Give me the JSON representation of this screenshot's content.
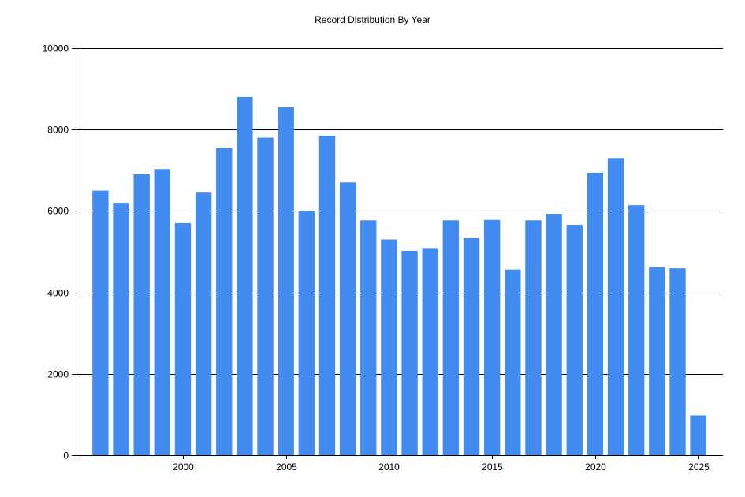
{
  "chart_data": {
    "type": "bar",
    "title": "Record Distribution By Year",
    "xlabel": "",
    "ylabel": "",
    "x": [
      1996,
      1997,
      1998,
      1999,
      2000,
      2001,
      2002,
      2003,
      2004,
      2005,
      2006,
      2007,
      2008,
      2009,
      2010,
      2011,
      2012,
      2013,
      2014,
      2015,
      2016,
      2017,
      2018,
      2019,
      2020,
      2021,
      2022,
      2023,
      2024,
      2025
    ],
    "values": [
      6500,
      6200,
      6900,
      7030,
      5700,
      6450,
      7550,
      8800,
      7800,
      8550,
      6000,
      7850,
      6700,
      5770,
      5300,
      5020,
      5090,
      5770,
      5330,
      5780,
      4560,
      5770,
      5930,
      5660,
      6940,
      7300,
      6140,
      4620,
      4590,
      980
    ],
    "xlim": [
      1994.8,
      2026.2
    ],
    "ylim": [
      0,
      10000
    ],
    "x_ticks": [
      2000,
      2005,
      2010,
      2015,
      2020,
      2025
    ],
    "y_ticks": [
      0,
      2000,
      4000,
      6000,
      8000,
      10000
    ],
    "grid": "horizontal",
    "legend": "none",
    "bar_color": "#428BF0"
  }
}
